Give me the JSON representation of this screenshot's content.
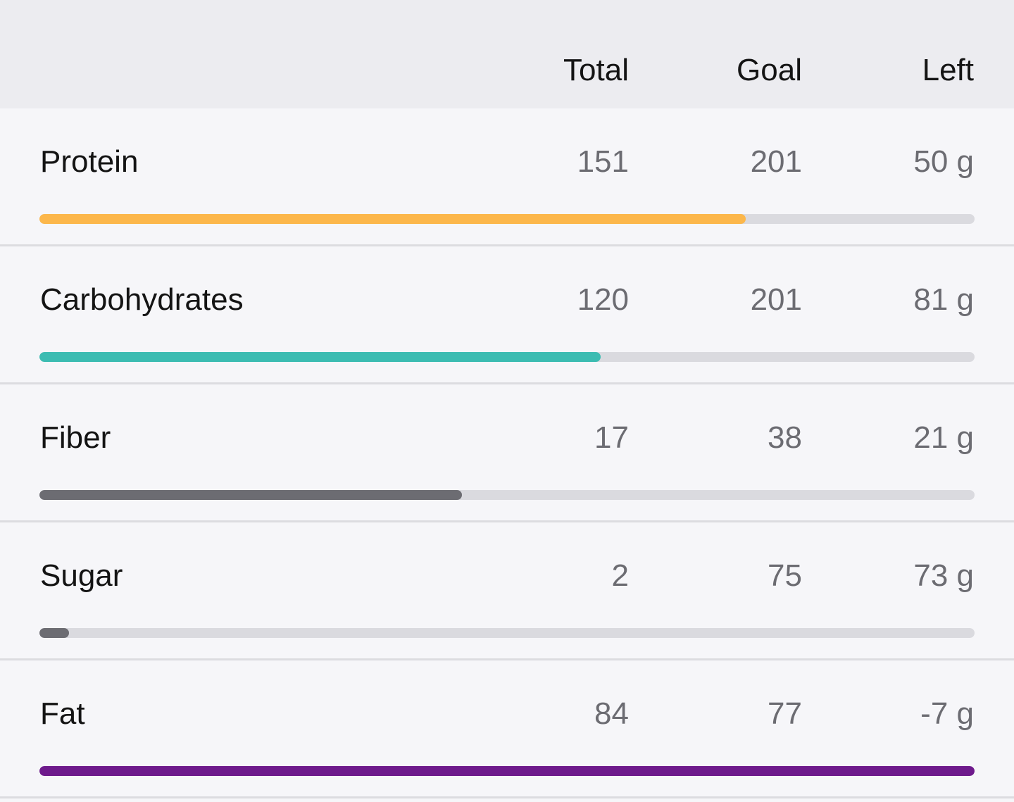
{
  "header": {
    "total_label": "Total",
    "goal_label": "Goal",
    "left_label": "Left"
  },
  "rows": [
    {
      "name": "Protein",
      "total": "151",
      "goal": "201",
      "left": "50 g",
      "progress": 0.755,
      "color": "#fcb74b"
    },
    {
      "name": "Carbohydrates",
      "total": "120",
      "goal": "201",
      "left": "81 g",
      "progress": 0.6,
      "color": "#3cbcb2"
    },
    {
      "name": "Fiber",
      "total": "17",
      "goal": "38",
      "left": "21 g",
      "progress": 0.452,
      "color": "#6c6c72"
    },
    {
      "name": "Sugar",
      "total": "2",
      "goal": "75",
      "left": "73 g",
      "progress": 0.032,
      "color": "#6c6c72"
    },
    {
      "name": "Fat",
      "total": "84",
      "goal": "77",
      "left": "-7 g",
      "progress": 1.0,
      "color": "#6e1a8c"
    }
  ]
}
